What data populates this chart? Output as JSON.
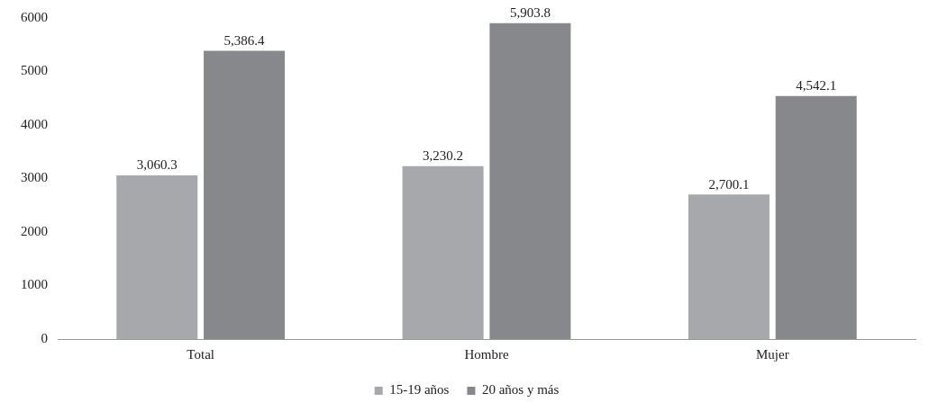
{
  "chart_data": {
    "type": "bar",
    "categories": [
      "Total",
      "Hombre",
      "Mujer"
    ],
    "series": [
      {
        "name": "15-19 años",
        "color": "#a7a8ab",
        "values": [
          3060.3,
          3230.2,
          2700.1
        ],
        "value_labels": [
          "3,060.3",
          "3,230.2",
          "2,700.1"
        ]
      },
      {
        "name": "20 años y más",
        "color": "#87888b",
        "values": [
          5386.4,
          5903.8,
          4542.1
        ],
        "value_labels": [
          "5,386.4",
          "5,903.8",
          "4,542.1"
        ]
      }
    ],
    "ylim": [
      0,
      6000
    ],
    "yticks": [
      0,
      1000,
      2000,
      3000,
      4000,
      5000,
      6000
    ],
    "grid": false,
    "legend": "bottom"
  }
}
